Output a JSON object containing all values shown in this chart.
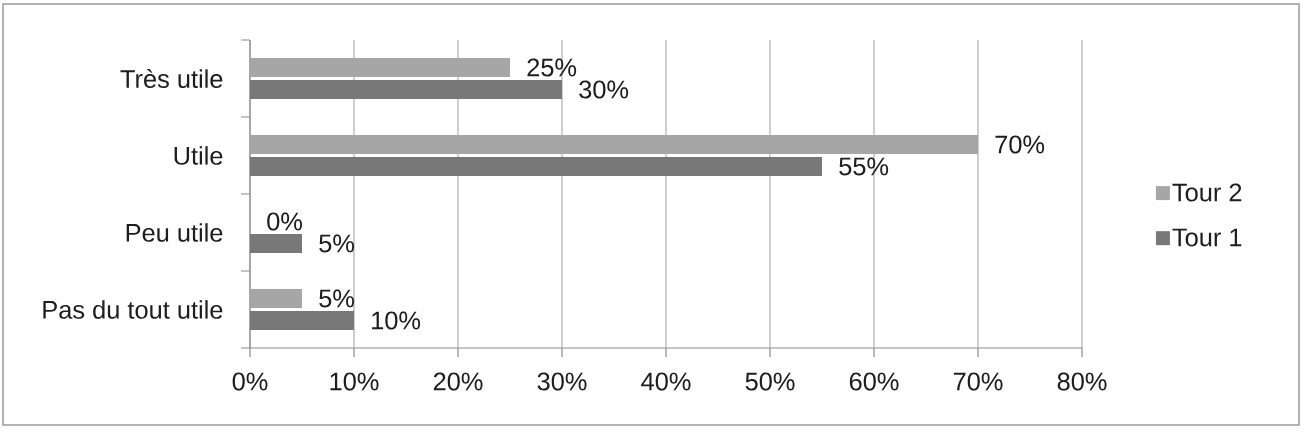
{
  "chart_data": {
    "type": "bar",
    "orientation": "horizontal",
    "categories": [
      "Très utile",
      "Utile",
      "Peu utile",
      "Pas du tout utile"
    ],
    "series": [
      {
        "name": "Tour 2",
        "color": "#a6a6a6",
        "values": [
          25,
          70,
          0,
          5
        ],
        "value_labels": [
          "25%",
          "70%",
          "0%",
          "5%"
        ]
      },
      {
        "name": "Tour 1",
        "color": "#787878",
        "values": [
          30,
          55,
          5,
          10
        ],
        "value_labels": [
          "30%",
          "55%",
          "5%",
          "10%"
        ]
      }
    ],
    "xlim": [
      0,
      80
    ],
    "xticks": [
      {
        "value": 0,
        "label": "0%"
      },
      {
        "value": 10,
        "label": "10%"
      },
      {
        "value": 20,
        "label": "20%"
      },
      {
        "value": 30,
        "label": "30%"
      },
      {
        "value": 40,
        "label": "40%"
      },
      {
        "value": 50,
        "label": "50%"
      },
      {
        "value": 60,
        "label": "60%"
      },
      {
        "value": 70,
        "label": "70%"
      },
      {
        "value": 80,
        "label": "80%"
      }
    ],
    "grid": "x",
    "legend": "right"
  }
}
